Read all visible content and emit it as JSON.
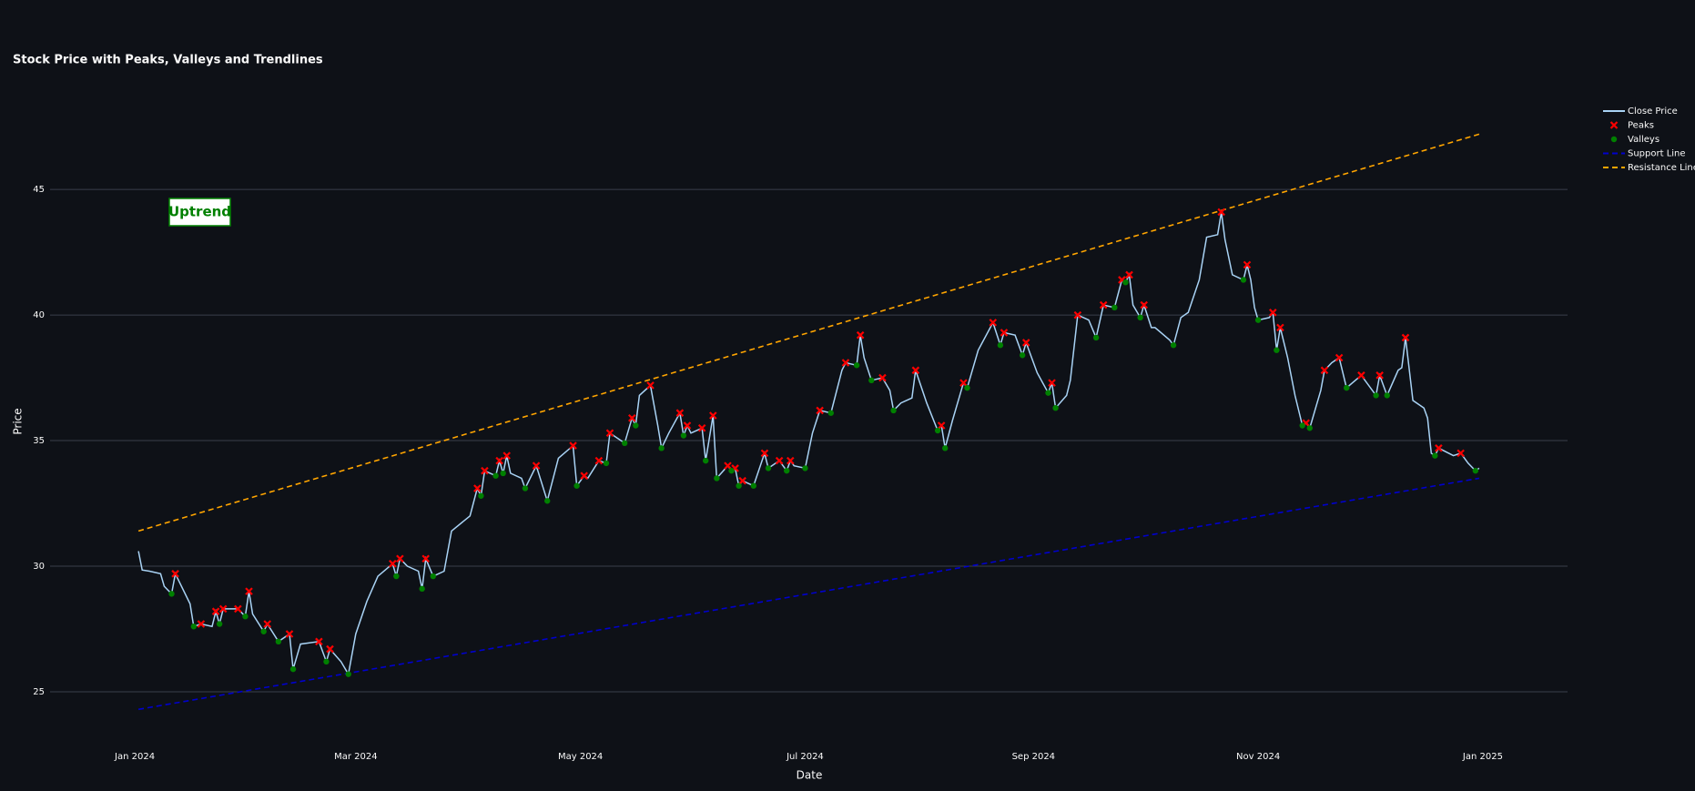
{
  "chart_data": {
    "type": "line",
    "title": "Stock Price with Peaks, Valleys and Trendlines",
    "x_label": "Date",
    "y_label": "Price",
    "annotations": [
      "Uptrend"
    ],
    "xlim": [
      "2023-12-09",
      "2025-01-24"
    ],
    "xticks": [
      {
        "value": "2024-01-01",
        "label": "Jan 2024"
      },
      {
        "value": "2024-03-01",
        "label": "Mar 2024"
      },
      {
        "value": "2024-05-01",
        "label": "May 2024"
      },
      {
        "value": "2024-07-01",
        "label": "Jul 2024"
      },
      {
        "value": "2024-09-01",
        "label": "Sep 2024"
      },
      {
        "value": "2024-11-01",
        "label": "Nov 2024"
      },
      {
        "value": "2025-01-01",
        "label": "Jan 2025"
      }
    ],
    "ylim": [
      23.26,
      49.1
    ],
    "yticks": [
      25,
      30,
      35,
      40,
      45
    ],
    "grid": "y",
    "legend": "right",
    "series": [
      {
        "name": "Close Price",
        "color": "#a9d3f5",
        "marker": "none",
        "x": [
          "2024-01-02",
          "2024-01-03",
          "2024-01-05",
          "2024-01-08",
          "2024-01-09",
          "2024-01-11",
          "2024-01-12",
          "2024-01-16",
          "2024-01-17",
          "2024-01-19",
          "2024-01-22",
          "2024-01-23",
          "2024-01-24",
          "2024-01-25",
          "2024-01-29",
          "2024-01-31",
          "2024-02-01",
          "2024-02-02",
          "2024-02-05",
          "2024-02-06",
          "2024-02-09",
          "2024-02-12",
          "2024-02-13",
          "2024-02-15",
          "2024-02-20",
          "2024-02-22",
          "2024-02-23",
          "2024-02-26",
          "2024-02-28",
          "2024-03-01",
          "2024-03-04",
          "2024-03-07",
          "2024-03-11",
          "2024-03-12",
          "2024-03-13",
          "2024-03-15",
          "2024-03-18",
          "2024-03-19",
          "2024-03-20",
          "2024-03-22",
          "2024-03-25",
          "2024-03-27",
          "2024-04-01",
          "2024-04-03",
          "2024-04-04",
          "2024-04-05",
          "2024-04-08",
          "2024-04-09",
          "2024-04-10",
          "2024-04-11",
          "2024-04-12",
          "2024-04-15",
          "2024-04-16",
          "2024-04-19",
          "2024-04-22",
          "2024-04-25",
          "2024-04-29",
          "2024-04-30",
          "2024-05-02",
          "2024-05-03",
          "2024-05-06",
          "2024-05-08",
          "2024-05-09",
          "2024-05-13",
          "2024-05-15",
          "2024-05-16",
          "2024-05-17",
          "2024-05-20",
          "2024-05-22",
          "2024-05-23",
          "2024-05-25",
          "2024-05-28",
          "2024-05-29",
          "2024-05-30",
          "2024-05-31",
          "2024-06-03",
          "2024-06-04",
          "2024-06-06",
          "2024-06-07",
          "2024-06-10",
          "2024-06-11",
          "2024-06-12",
          "2024-06-13",
          "2024-06-14",
          "2024-06-17",
          "2024-06-20",
          "2024-06-21",
          "2024-06-24",
          "2024-06-26",
          "2024-06-27",
          "2024-06-28",
          "2024-07-01",
          "2024-07-03",
          "2024-07-05",
          "2024-07-08",
          "2024-07-11",
          "2024-07-12",
          "2024-07-15",
          "2024-07-16",
          "2024-07-17",
          "2024-07-19",
          "2024-07-22",
          "2024-07-24",
          "2024-07-25",
          "2024-07-27",
          "2024-07-30",
          "2024-07-31",
          "2024-08-03",
          "2024-08-06",
          "2024-08-07",
          "2024-08-08",
          "2024-08-10",
          "2024-08-13",
          "2024-08-14",
          "2024-08-17",
          "2024-08-21",
          "2024-08-23",
          "2024-08-24",
          "2024-08-27",
          "2024-08-29",
          "2024-08-30",
          "2024-09-02",
          "2024-09-05",
          "2024-09-06",
          "2024-09-07",
          "2024-09-10",
          "2024-09-11",
          "2024-09-13",
          "2024-09-16",
          "2024-09-18",
          "2024-09-20",
          "2024-09-23",
          "2024-09-25",
          "2024-09-26",
          "2024-09-27",
          "2024-09-28",
          "2024-09-30",
          "2024-10-01",
          "2024-10-03",
          "2024-10-04",
          "2024-10-08",
          "2024-10-09",
          "2024-10-11",
          "2024-10-13",
          "2024-10-16",
          "2024-10-18",
          "2024-10-21",
          "2024-10-22",
          "2024-10-23",
          "2024-10-25",
          "2024-10-28",
          "2024-10-29",
          "2024-10-30",
          "2024-10-31",
          "2024-11-01",
          "2024-11-04",
          "2024-11-05",
          "2024-11-06",
          "2024-11-07",
          "2024-11-09",
          "2024-11-11",
          "2024-11-13",
          "2024-11-14",
          "2024-11-15",
          "2024-11-18",
          "2024-11-19",
          "2024-11-21",
          "2024-11-23",
          "2024-11-25",
          "2024-11-29",
          "2024-12-03",
          "2024-12-04",
          "2024-12-06",
          "2024-12-09",
          "2024-12-10",
          "2024-12-11",
          "2024-12-13",
          "2024-12-16",
          "2024-12-17",
          "2024-12-18",
          "2024-12-19",
          "2024-12-20",
          "2024-12-24",
          "2024-12-26",
          "2024-12-28",
          "2024-12-30",
          "2024-12-31"
        ],
        "values": [
          30.6,
          29.85,
          29.8,
          29.7,
          29.2,
          28.9,
          29.7,
          28.5,
          27.6,
          27.7,
          27.6,
          28.2,
          27.7,
          28.3,
          28.3,
          28.0,
          29.0,
          28.1,
          27.4,
          27.7,
          27.0,
          27.3,
          25.9,
          26.9,
          27.0,
          26.2,
          26.7,
          26.2,
          25.7,
          27.3,
          28.6,
          29.6,
          30.1,
          29.6,
          30.3,
          30.0,
          29.8,
          29.1,
          30.3,
          29.6,
          29.8,
          31.4,
          32.0,
          33.1,
          32.8,
          33.8,
          33.6,
          34.2,
          33.7,
          34.4,
          33.7,
          33.5,
          33.1,
          34.0,
          32.6,
          34.3,
          34.8,
          33.2,
          33.6,
          33.5,
          34.2,
          34.1,
          35.3,
          34.9,
          35.9,
          35.6,
          36.8,
          37.2,
          35.6,
          34.7,
          35.3,
          36.1,
          35.2,
          35.6,
          35.3,
          35.5,
          34.2,
          36.0,
          33.5,
          34.0,
          33.8,
          33.9,
          33.2,
          33.4,
          33.2,
          34.5,
          33.9,
          34.2,
          33.8,
          34.2,
          34.0,
          33.9,
          35.3,
          36.2,
          36.1,
          37.8,
          38.1,
          38.0,
          39.2,
          38.3,
          37.4,
          37.5,
          37.0,
          36.2,
          36.5,
          36.7,
          37.8,
          36.5,
          35.4,
          35.6,
          34.7,
          35.8,
          37.3,
          37.1,
          38.6,
          39.7,
          38.8,
          39.3,
          39.2,
          38.4,
          38.9,
          37.7,
          36.9,
          37.3,
          36.3,
          36.8,
          37.4,
          40.0,
          39.8,
          39.1,
          40.4,
          40.3,
          41.4,
          41.3,
          41.6,
          40.4,
          39.9,
          40.4,
          39.5,
          39.5,
          39.0,
          38.8,
          39.9,
          40.1,
          41.4,
          43.1,
          43.2,
          44.1,
          43.0,
          41.6,
          41.4,
          42.0,
          41.4,
          40.3,
          39.8,
          39.9,
          40.1,
          38.6,
          39.5,
          38.3,
          36.8,
          35.6,
          35.7,
          35.5,
          37.0,
          37.8,
          38.1,
          38.3,
          37.1,
          37.6,
          36.8,
          37.6,
          36.8,
          37.8,
          37.9,
          39.1,
          36.6,
          36.3,
          35.9,
          34.5,
          34.4,
          34.7,
          34.4,
          34.5,
          34.1,
          33.8,
          33.9
        ]
      },
      {
        "name": "Peaks",
        "color": "#ff0000",
        "marker": "x",
        "x": [
          "2024-01-12",
          "2024-01-19",
          "2024-01-23",
          "2024-01-25",
          "2024-01-29",
          "2024-02-01",
          "2024-02-06",
          "2024-02-12",
          "2024-02-20",
          "2024-02-23",
          "2024-03-11",
          "2024-03-13",
          "2024-03-20",
          "2024-04-03",
          "2024-04-05",
          "2024-04-09",
          "2024-04-11",
          "2024-04-19",
          "2024-04-29",
          "2024-05-02",
          "2024-05-06",
          "2024-05-09",
          "2024-05-15",
          "2024-05-20",
          "2024-05-28",
          "2024-05-30",
          "2024-06-03",
          "2024-06-06",
          "2024-06-10",
          "2024-06-12",
          "2024-06-14",
          "2024-06-20",
          "2024-06-24",
          "2024-06-27",
          "2024-07-05",
          "2024-07-12",
          "2024-07-16",
          "2024-07-22",
          "2024-07-31",
          "2024-08-07",
          "2024-08-13",
          "2024-08-21",
          "2024-08-24",
          "2024-08-30",
          "2024-09-06",
          "2024-09-13",
          "2024-09-20",
          "2024-09-25",
          "2024-09-27",
          "2024-10-01",
          "2024-10-22",
          "2024-10-29",
          "2024-11-05",
          "2024-11-07",
          "2024-11-14",
          "2024-11-19",
          "2024-11-23",
          "2024-11-29",
          "2024-12-04",
          "2024-12-11",
          "2024-12-20",
          "2024-12-26"
        ],
        "values": [
          29.7,
          27.7,
          28.2,
          28.3,
          28.3,
          29.0,
          27.7,
          27.3,
          27.0,
          26.7,
          30.1,
          30.3,
          30.3,
          33.1,
          33.8,
          34.2,
          34.4,
          34.0,
          34.8,
          33.6,
          34.2,
          35.3,
          35.9,
          37.2,
          36.1,
          35.6,
          35.5,
          36.0,
          34.0,
          33.9,
          33.4,
          34.5,
          34.2,
          34.2,
          36.2,
          38.1,
          39.2,
          37.5,
          37.8,
          35.6,
          37.3,
          39.7,
          39.3,
          38.9,
          37.3,
          40.0,
          40.4,
          41.4,
          41.6,
          40.4,
          44.1,
          42.0,
          40.1,
          39.5,
          35.7,
          37.8,
          38.3,
          37.6,
          37.6,
          39.1,
          34.7,
          34.5
        ]
      },
      {
        "name": "Valleys",
        "color": "#008000",
        "marker": "circle",
        "x": [
          "2024-01-11",
          "2024-01-17",
          "2024-01-24",
          "2024-01-31",
          "2024-02-05",
          "2024-02-09",
          "2024-02-13",
          "2024-02-22",
          "2024-02-28",
          "2024-03-12",
          "2024-03-19",
          "2024-03-22",
          "2024-04-04",
          "2024-04-08",
          "2024-04-10",
          "2024-04-16",
          "2024-04-22",
          "2024-04-30",
          "2024-05-08",
          "2024-05-13",
          "2024-05-16",
          "2024-05-23",
          "2024-05-29",
          "2024-06-04",
          "2024-06-07",
          "2024-06-11",
          "2024-06-13",
          "2024-06-17",
          "2024-06-21",
          "2024-06-26",
          "2024-07-01",
          "2024-07-08",
          "2024-07-15",
          "2024-07-19",
          "2024-07-25",
          "2024-08-06",
          "2024-08-08",
          "2024-08-14",
          "2024-08-23",
          "2024-08-29",
          "2024-09-05",
          "2024-09-07",
          "2024-09-18",
          "2024-09-23",
          "2024-09-26",
          "2024-09-30",
          "2024-10-09",
          "2024-10-28",
          "2024-11-01",
          "2024-11-06",
          "2024-11-13",
          "2024-11-15",
          "2024-11-25",
          "2024-12-03",
          "2024-12-06",
          "2024-12-19",
          "2024-12-30"
        ],
        "values": [
          28.9,
          27.6,
          27.7,
          28.0,
          27.4,
          27.0,
          25.9,
          26.2,
          25.7,
          29.6,
          29.1,
          29.6,
          32.8,
          33.6,
          33.7,
          33.1,
          32.6,
          33.2,
          34.1,
          34.9,
          35.6,
          34.7,
          35.2,
          34.2,
          33.5,
          33.8,
          33.2,
          33.2,
          33.9,
          33.8,
          33.9,
          36.1,
          38.0,
          37.4,
          36.2,
          35.4,
          34.7,
          37.1,
          38.8,
          38.4,
          36.9,
          36.3,
          39.1,
          40.3,
          41.3,
          39.9,
          38.8,
          41.4,
          39.8,
          38.6,
          35.6,
          35.5,
          37.1,
          36.8,
          36.8,
          34.4,
          33.8
        ]
      },
      {
        "name": "Support Line",
        "color": "#0000cd",
        "marker": "none",
        "dash": true,
        "x": [
          "2024-01-02",
          "2024-12-31"
        ],
        "values": [
          24.3,
          33.5
        ]
      },
      {
        "name": "Resistance Line",
        "color": "#ffa500",
        "marker": "none",
        "dash": true,
        "x": [
          "2024-01-02",
          "2024-12-31"
        ],
        "values": [
          31.4,
          47.2
        ]
      }
    ]
  }
}
